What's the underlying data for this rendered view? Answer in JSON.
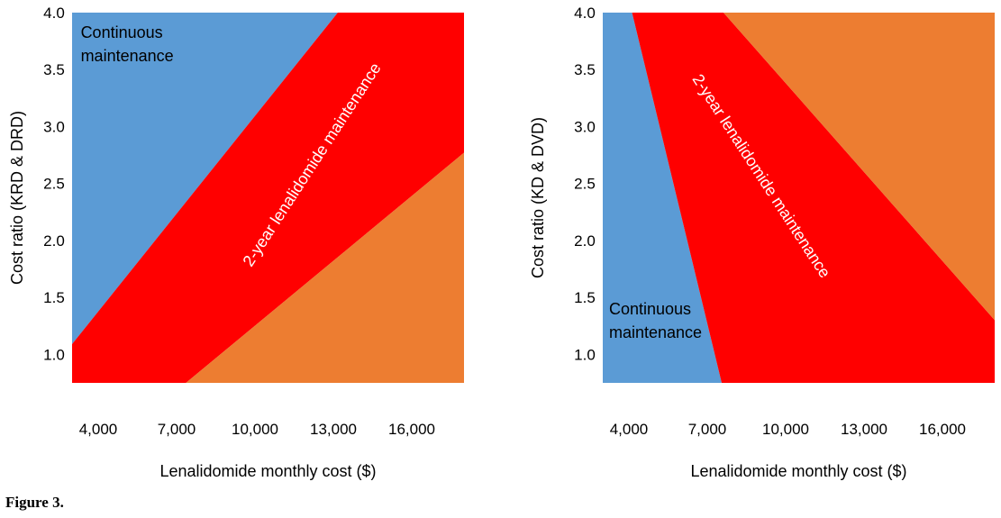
{
  "figure_caption": "Figure 3.",
  "colors": {
    "continuous": "#5b9bd5",
    "two_year": "#ff0000",
    "third": "#ed7d31",
    "text": "#000000",
    "inner_text": "#ffffff"
  },
  "chart_data": [
    {
      "type": "area",
      "title": "",
      "xlabel": "Lenalidomide monthly cost ($)",
      "ylabel": "Cost ratio (KRD & DRD)",
      "xlim": [
        3000,
        18000
      ],
      "ylim": [
        0.75,
        4.0
      ],
      "x_ticks": [
        4000,
        7000,
        10000,
        13000,
        16000
      ],
      "x_tick_labels": [
        "4,000",
        "7,000",
        "10,000",
        "13,000",
        "16,000"
      ],
      "y_ticks": [
        1.0,
        1.5,
        2.0,
        2.5,
        3.0,
        3.5,
        4.0
      ],
      "y_tick_labels": [
        "1.0",
        "1.5",
        "2.0",
        "2.5",
        "3.0",
        "3.5",
        "4.0"
      ],
      "regions": [
        {
          "name": "Continuous maintenance",
          "color_key": "continuous",
          "polygon": [
            [
              3000,
              0.75
            ],
            [
              3000,
              4.0
            ],
            [
              13170,
              4.0
            ],
            [
              3000,
              1.09
            ]
          ]
        },
        {
          "name": "2-year lenalidomide maintenance",
          "color_key": "two_year",
          "polygon": [
            [
              3000,
              0.75
            ],
            [
              3000,
              1.09
            ],
            [
              13170,
              4.0
            ],
            [
              18000,
              4.0
            ],
            [
              18000,
              2.77
            ],
            [
              7360,
              0.75
            ]
          ]
        },
        {
          "name": "",
          "color_key": "third",
          "polygon": [
            [
              7360,
              0.75
            ],
            [
              18000,
              2.77
            ],
            [
              18000,
              0.75
            ]
          ]
        }
      ],
      "annotations": [
        {
          "text": "Continuous\nmaintenance",
          "x": 3330,
          "y": 3.78,
          "rotation": 0,
          "anchor": "start",
          "color_key": "text"
        },
        {
          "text": "2-year lenalidomide maintenance",
          "x": 12350,
          "y": 2.64,
          "rotation": -57,
          "anchor": "middle",
          "color_key": "inner_text"
        }
      ]
    },
    {
      "type": "area",
      "title": "",
      "xlabel": "Lenalidomide monthly cost ($)",
      "ylabel": "Cost ratio (KD & DVD)",
      "xlim": [
        3000,
        18000
      ],
      "ylim": [
        0.75,
        4.0
      ],
      "x_ticks": [
        4000,
        7000,
        10000,
        13000,
        16000
      ],
      "x_tick_labels": [
        "4,000",
        "7,000",
        "10,000",
        "13,000",
        "16,000"
      ],
      "y_ticks": [
        1.0,
        1.5,
        2.0,
        2.5,
        3.0,
        3.5,
        4.0
      ],
      "y_tick_labels": [
        "1.0",
        "1.5",
        "2.0",
        "2.5",
        "3.0",
        "3.5",
        "4.0"
      ],
      "regions": [
        {
          "name": "Continuous maintenance",
          "color_key": "continuous",
          "polygon": [
            [
              3000,
              0.75
            ],
            [
              3000,
              4.0
            ],
            [
              4120,
              4.0
            ],
            [
              7550,
              0.75
            ]
          ]
        },
        {
          "name": "2-year lenalidomide maintenance",
          "color_key": "two_year",
          "polygon": [
            [
              4120,
              4.0
            ],
            [
              7550,
              0.75
            ],
            [
              18000,
              0.75
            ],
            [
              18000,
              1.3
            ],
            [
              7620,
              4.0
            ]
          ]
        },
        {
          "name": "",
          "color_key": "third",
          "polygon": [
            [
              7620,
              4.0
            ],
            [
              18000,
              4.0
            ],
            [
              18000,
              1.3
            ]
          ]
        }
      ],
      "annotations": [
        {
          "text": "Continuous\nmaintenance",
          "x": 3240,
          "y": 1.35,
          "rotation": 0,
          "anchor": "start",
          "color_key": "text"
        },
        {
          "text": "2-year lenalidomide maintenance",
          "x": 8900,
          "y": 2.54,
          "rotation": 57,
          "anchor": "middle",
          "color_key": "inner_text"
        }
      ]
    }
  ]
}
